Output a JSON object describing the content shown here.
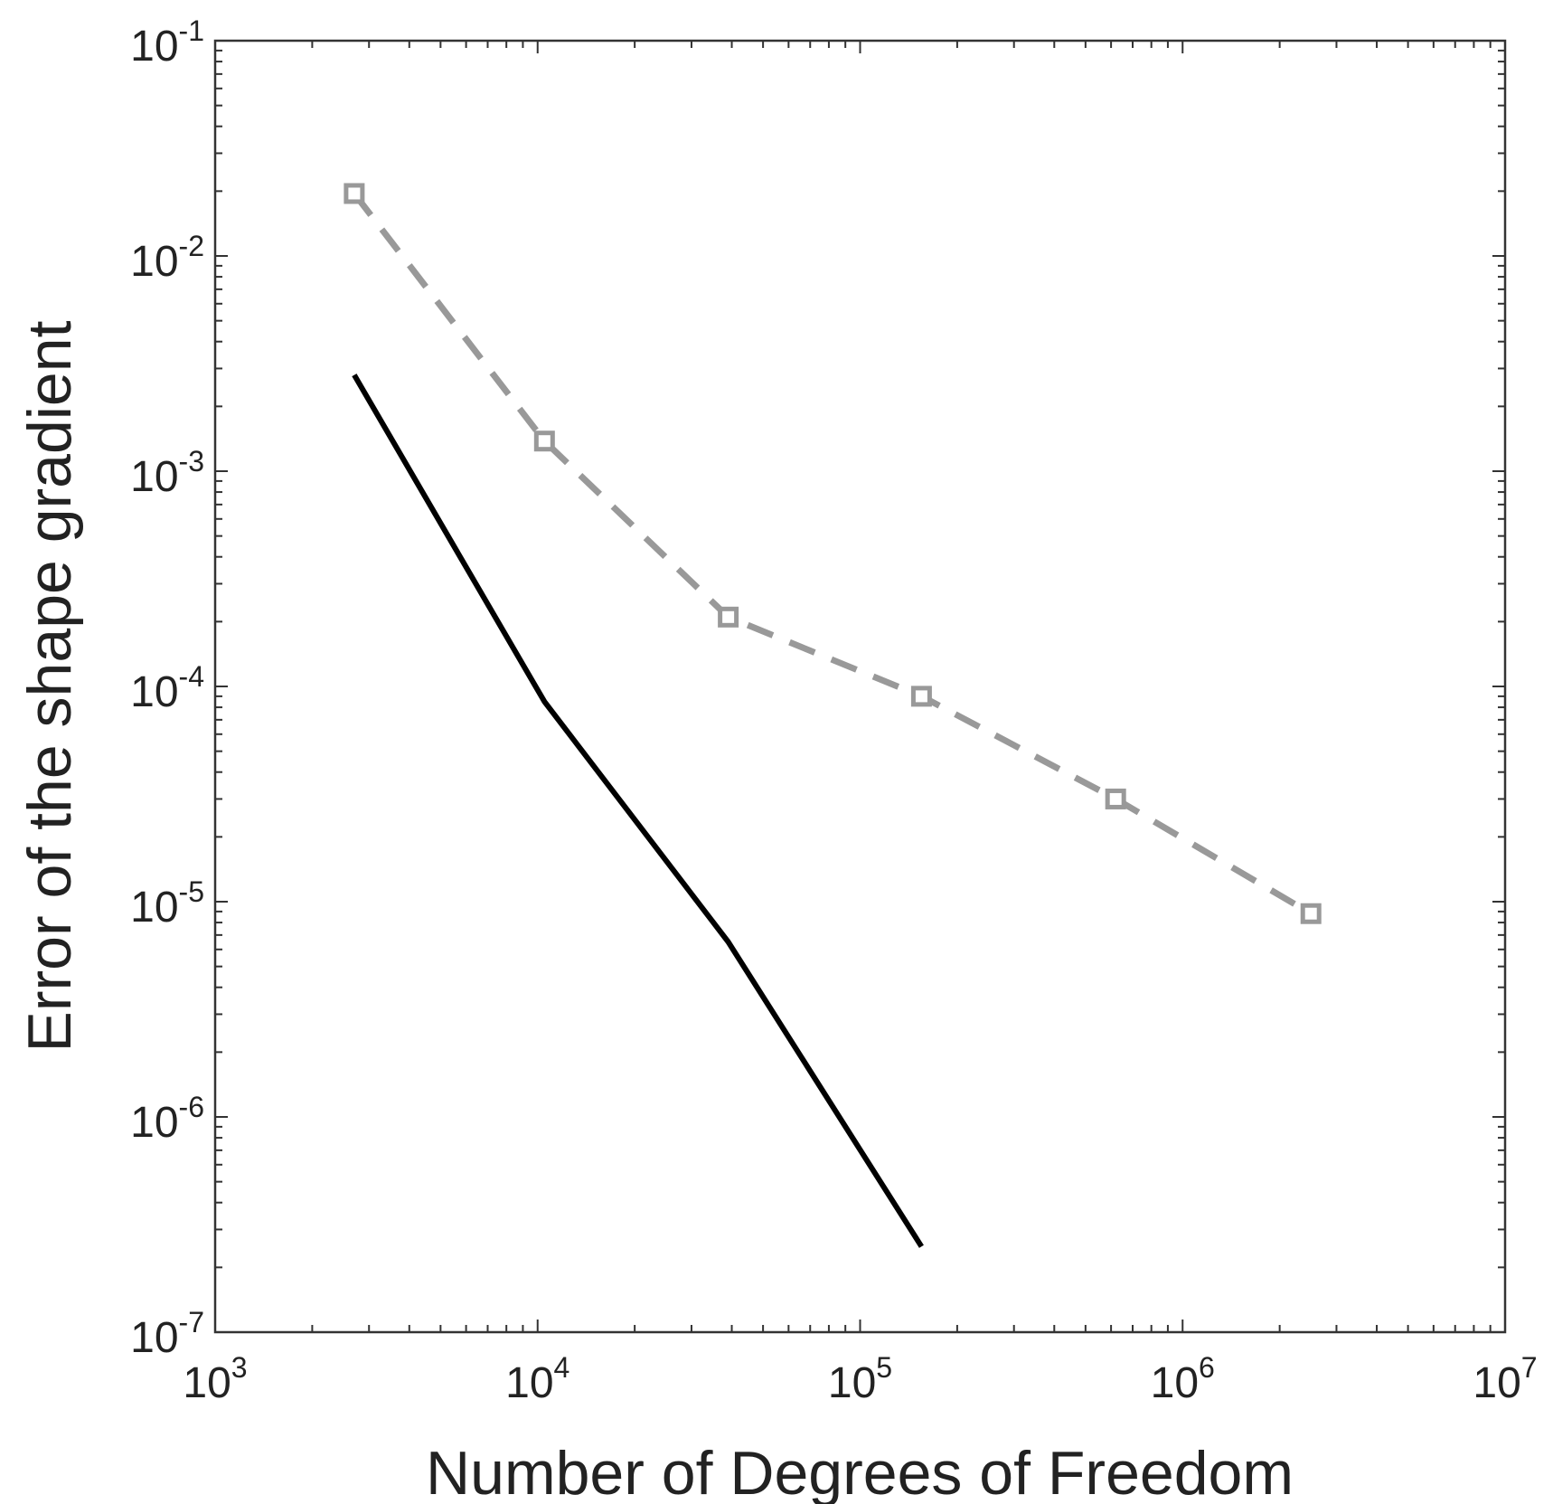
{
  "chart_data": {
    "type": "line",
    "xlabel": "Number of Degrees of Freedom",
    "ylabel": "Error of the shape gradient",
    "xscale": "log",
    "yscale": "log",
    "xlim": [
      1000,
      10000000
    ],
    "ylim": [
      1e-07,
      0.1
    ],
    "grid": false,
    "legend": "none",
    "x_ticks": [
      {
        "value": 1000,
        "base": "10",
        "exp": "3"
      },
      {
        "value": 10000,
        "base": "10",
        "exp": "4"
      },
      {
        "value": 100000,
        "base": "10",
        "exp": "5"
      },
      {
        "value": 1000000,
        "base": "10",
        "exp": "6"
      },
      {
        "value": 10000000,
        "base": "10",
        "exp": "7"
      }
    ],
    "y_ticks": [
      {
        "value": 0.1,
        "base": "10",
        "exp": "-1"
      },
      {
        "value": 0.01,
        "base": "10",
        "exp": "-2"
      },
      {
        "value": 0.001,
        "base": "10",
        "exp": "-3"
      },
      {
        "value": 0.0001,
        "base": "10",
        "exp": "-4"
      },
      {
        "value": 1e-05,
        "base": "10",
        "exp": "-5"
      },
      {
        "value": 1e-06,
        "base": "10",
        "exp": "-6"
      },
      {
        "value": 1e-07,
        "base": "10",
        "exp": "-7"
      }
    ],
    "series": [
      {
        "style": "dashed",
        "marker": "square",
        "color": "#999999",
        "x": [
          2700,
          10500,
          39000,
          155000,
          620000,
          2500000
        ],
        "y": [
          0.0195,
          0.00138,
          0.00021,
          9e-05,
          3e-05,
          8.8e-06
        ]
      },
      {
        "style": "solid",
        "marker": "none",
        "color": "#000000",
        "x": [
          2700,
          10500,
          39000,
          155000
        ],
        "y": [
          0.0028,
          8.5e-05,
          6.5e-06,
          2.5e-07
        ]
      }
    ]
  }
}
